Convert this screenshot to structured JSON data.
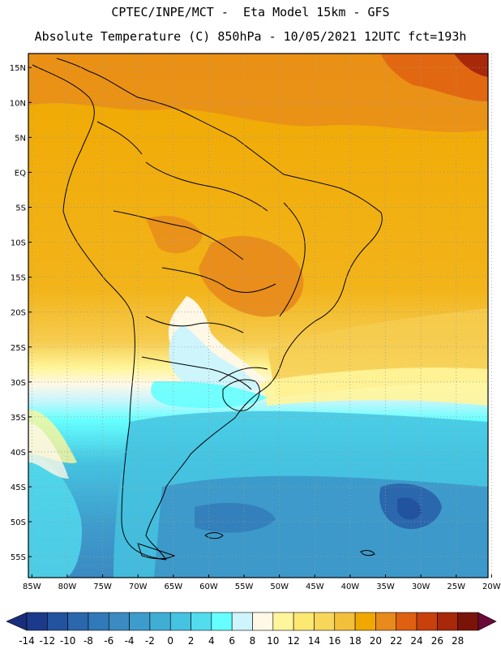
{
  "header": {
    "title_line1": "CPTEC/INPE/MCT -  Eta Model 15km - GFS",
    "title_line2": "Absolute Temperature (C) 850hPa - 10/05/2021 12UTC fct=193h"
  },
  "map": {
    "lat_labels": [
      "15N",
      "10N",
      "5N",
      "EQ",
      "5S",
      "10S",
      "15S",
      "20S",
      "25S",
      "30S",
      "35S",
      "40S",
      "45S",
      "50S",
      "55S"
    ],
    "lat_values": [
      15,
      10,
      5,
      0,
      -5,
      -10,
      -15,
      -20,
      -25,
      -30,
      -35,
      -40,
      -45,
      -50,
      -55
    ],
    "lon_labels": [
      "85W",
      "80W",
      "75W",
      "70W",
      "65W",
      "60W",
      "55W",
      "50W",
      "45W",
      "40W",
      "35W",
      "30W",
      "25W",
      "20W"
    ],
    "lon_values": [
      -85,
      -80,
      -75,
      -70,
      -65,
      -60,
      -55,
      -50,
      -45,
      -40,
      -35,
      -30,
      -25,
      -20
    ],
    "extent": {
      "lon_min": -85.5,
      "lon_max": -20.5,
      "lat_min": -58,
      "lat_max": 17
    }
  },
  "colorbar": {
    "labels": [
      "-14",
      "-12",
      "-10",
      "-8",
      "-6",
      "-4",
      "-2",
      "0",
      "2",
      "4",
      "6",
      "8",
      "10",
      "12",
      "14",
      "16",
      "18",
      "20",
      "22",
      "24",
      "26",
      "28"
    ],
    "colors": [
      "#1c3a8c",
      "#22539e",
      "#2b67ad",
      "#3179b8",
      "#3b8ac2",
      "#3e9ccc",
      "#40aed4",
      "#45c3e0",
      "#52dcee",
      "#66ffff",
      "#cdf5fb",
      "#fff8e6",
      "#fff59a",
      "#fde872",
      "#f8d65a",
      "#f2c03a",
      "#f0a800",
      "#e88a1c",
      "#df6010",
      "#c8400c",
      "#a8280a",
      "#7a1408"
    ],
    "left_arrow_color": "#1a2d7a",
    "right_arrow_color": "#6a0a3a"
  }
}
